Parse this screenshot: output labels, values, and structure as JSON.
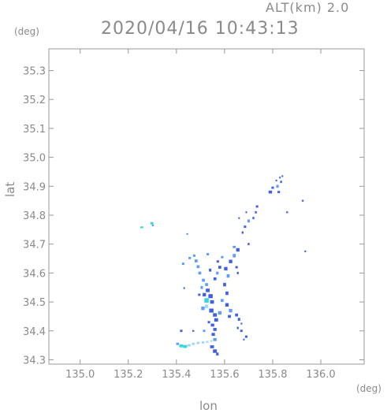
{
  "header": {
    "altitude": "ALT(km) 2.0",
    "timestamp": "2020/04/16 10:43:13"
  },
  "chart_data": {
    "type": "scatter",
    "title": "2020/04/16 10:43:13",
    "xlabel": "lon",
    "ylabel": "lat",
    "xunit": "(deg)",
    "yunit": "(deg)",
    "xlim": [
      134.87,
      136.18
    ],
    "ylim": [
      34.285,
      35.375
    ],
    "xticks": [
      135.0,
      135.2,
      135.4,
      135.6,
      135.8,
      136.0
    ],
    "yticks": [
      34.3,
      34.4,
      34.5,
      34.6,
      34.7,
      34.8,
      34.9,
      35.0,
      35.1,
      35.2,
      35.3
    ],
    "xtick_labels": [
      "135.0",
      "135.2",
      "135.4",
      "135.6",
      "135.8",
      "136.0"
    ],
    "ytick_labels": [
      "34.3",
      "34.4",
      "34.5",
      "34.6",
      "34.7",
      "34.8",
      "34.9",
      "35.0",
      "35.1",
      "35.2",
      "35.3"
    ],
    "grid": false,
    "colors": {
      "axis": "#999999",
      "echo_main": "#3f5fe6",
      "echo_light": "#5c9dff",
      "echo_cyan": "#36d6e0",
      "echo_pale": "#9fd8ff"
    },
    "points": [
      [
        135.256,
        34.758,
        2,
        0.012,
        0.006
      ],
      [
        135.298,
        34.772,
        2,
        0.012,
        0.008
      ],
      [
        135.302,
        34.765,
        1,
        0.008,
        0.006
      ],
      [
        135.445,
        34.735,
        1,
        0.008,
        0.005
      ],
      [
        135.428,
        34.632,
        1,
        0.01,
        0.008
      ],
      [
        135.455,
        34.652,
        1,
        0.01,
        0.008
      ],
      [
        135.474,
        34.66,
        1,
        0.01,
        0.008
      ],
      [
        135.482,
        34.642,
        1,
        0.012,
        0.01
      ],
      [
        135.49,
        34.622,
        1,
        0.012,
        0.01
      ],
      [
        135.497,
        34.6,
        1,
        0.012,
        0.01
      ],
      [
        135.512,
        34.575,
        1,
        0.012,
        0.01
      ],
      [
        135.525,
        34.56,
        1,
        0.012,
        0.01
      ],
      [
        135.53,
        34.54,
        0,
        0.016,
        0.012
      ],
      [
        135.516,
        34.525,
        0,
        0.014,
        0.012
      ],
      [
        135.542,
        34.52,
        0,
        0.018,
        0.014
      ],
      [
        135.525,
        34.505,
        2,
        0.018,
        0.016
      ],
      [
        135.548,
        34.5,
        0,
        0.016,
        0.012
      ],
      [
        135.525,
        34.485,
        3,
        0.014,
        0.012
      ],
      [
        135.51,
        34.478,
        1,
        0.014,
        0.012
      ],
      [
        135.545,
        34.47,
        0,
        0.018,
        0.014
      ],
      [
        135.56,
        34.455,
        0,
        0.016,
        0.012
      ],
      [
        135.58,
        34.462,
        1,
        0.014,
        0.012
      ],
      [
        135.565,
        34.438,
        0,
        0.016,
        0.012
      ],
      [
        135.55,
        34.42,
        0,
        0.014,
        0.01
      ],
      [
        135.56,
        34.405,
        0,
        0.014,
        0.01
      ],
      [
        135.553,
        34.388,
        0,
        0.014,
        0.01
      ],
      [
        135.56,
        34.37,
        1,
        0.014,
        0.01
      ],
      [
        135.548,
        34.345,
        0,
        0.016,
        0.01
      ],
      [
        135.56,
        34.33,
        0,
        0.016,
        0.012
      ],
      [
        135.57,
        34.32,
        0,
        0.01,
        0.01
      ],
      [
        135.59,
        34.505,
        1,
        0.012,
        0.01
      ],
      [
        135.61,
        34.49,
        0,
        0.014,
        0.012
      ],
      [
        135.625,
        34.47,
        1,
        0.014,
        0.012
      ],
      [
        135.62,
        34.45,
        0,
        0.012,
        0.01
      ],
      [
        135.65,
        34.455,
        0,
        0.012,
        0.01
      ],
      [
        135.66,
        34.44,
        0,
        0.01,
        0.01
      ],
      [
        135.61,
        34.53,
        0,
        0.012,
        0.012
      ],
      [
        135.6,
        34.56,
        0,
        0.012,
        0.012
      ],
      [
        135.615,
        34.59,
        1,
        0.012,
        0.012
      ],
      [
        135.605,
        34.615,
        0,
        0.014,
        0.012
      ],
      [
        135.625,
        34.64,
        0,
        0.014,
        0.012
      ],
      [
        135.64,
        34.66,
        1,
        0.012,
        0.012
      ],
      [
        135.655,
        34.68,
        0,
        0.014,
        0.012
      ],
      [
        135.64,
        34.69,
        1,
        0.012,
        0.008
      ],
      [
        135.58,
        34.62,
        0,
        0.012,
        0.01
      ],
      [
        135.57,
        34.6,
        1,
        0.01,
        0.01
      ],
      [
        135.56,
        34.58,
        0,
        0.012,
        0.01
      ],
      [
        135.54,
        34.61,
        0,
        0.01,
        0.01
      ],
      [
        135.505,
        34.55,
        1,
        0.01,
        0.01
      ],
      [
        135.495,
        34.525,
        0,
        0.01,
        0.008
      ],
      [
        135.572,
        34.64,
        0,
        0.01,
        0.008
      ],
      [
        135.59,
        34.655,
        1,
        0.01,
        0.008
      ],
      [
        135.53,
        34.665,
        1,
        0.01,
        0.008
      ],
      [
        135.432,
        34.548,
        0,
        0.006,
        0.006
      ],
      [
        135.42,
        34.4,
        0,
        0.01,
        0.008
      ],
      [
        135.405,
        34.355,
        1,
        0.012,
        0.008
      ],
      [
        135.42,
        34.348,
        2,
        0.016,
        0.01
      ],
      [
        135.436,
        34.346,
        2,
        0.016,
        0.01
      ],
      [
        135.452,
        34.35,
        3,
        0.014,
        0.008
      ],
      [
        135.47,
        34.355,
        3,
        0.012,
        0.008
      ],
      [
        135.49,
        34.358,
        3,
        0.012,
        0.008
      ],
      [
        135.51,
        34.36,
        3,
        0.01,
        0.008
      ],
      [
        135.528,
        34.362,
        3,
        0.01,
        0.006
      ],
      [
        135.545,
        34.365,
        3,
        0.008,
        0.006
      ],
      [
        135.47,
        34.4,
        0,
        0.008,
        0.006
      ],
      [
        135.67,
        34.4,
        0,
        0.01,
        0.008
      ],
      [
        135.69,
        34.38,
        0,
        0.01,
        0.008
      ],
      [
        135.68,
        34.37,
        0,
        0.006,
        0.006
      ],
      [
        135.655,
        34.41,
        0,
        0.008,
        0.008
      ],
      [
        135.67,
        34.425,
        0,
        0.006,
        0.006
      ],
      [
        135.65,
        34.62,
        0,
        0.01,
        0.008
      ],
      [
        135.655,
        34.6,
        0,
        0.008,
        0.008
      ],
      [
        135.7,
        34.7,
        0,
        0.008,
        0.008
      ],
      [
        135.675,
        34.74,
        0,
        0.008,
        0.008
      ],
      [
        135.685,
        34.76,
        0,
        0.01,
        0.008
      ],
      [
        135.7,
        34.78,
        1,
        0.01,
        0.01
      ],
      [
        135.72,
        34.79,
        0,
        0.008,
        0.008
      ],
      [
        135.73,
        34.81,
        0,
        0.008,
        0.008
      ],
      [
        135.735,
        34.83,
        0,
        0.01,
        0.008
      ],
      [
        135.69,
        34.81,
        0,
        0.006,
        0.006
      ],
      [
        135.66,
        34.79,
        0,
        0.006,
        0.006
      ],
      [
        135.79,
        34.88,
        0,
        0.014,
        0.01
      ],
      [
        135.8,
        34.895,
        0,
        0.01,
        0.008
      ],
      [
        135.82,
        34.9,
        1,
        0.01,
        0.01
      ],
      [
        135.825,
        34.88,
        0,
        0.01,
        0.008
      ],
      [
        135.835,
        34.915,
        0,
        0.008,
        0.008
      ],
      [
        135.84,
        34.935,
        0,
        0.006,
        0.006
      ],
      [
        135.83,
        34.93,
        0,
        0.006,
        0.006
      ],
      [
        135.815,
        34.92,
        0,
        0.006,
        0.006
      ],
      [
        135.86,
        34.81,
        0,
        0.008,
        0.006
      ],
      [
        135.925,
        34.85,
        0,
        0.008,
        0.006
      ],
      [
        135.935,
        34.675,
        0,
        0.006,
        0.006
      ],
      [
        135.515,
        34.4,
        1,
        0.01,
        0.008
      ],
      [
        135.535,
        34.43,
        0,
        0.01,
        0.008
      ]
    ]
  }
}
